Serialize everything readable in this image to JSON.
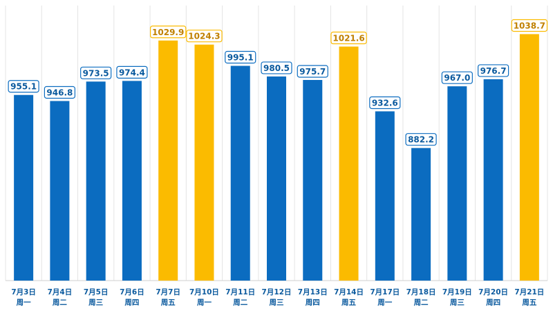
{
  "chart_data": {
    "type": "bar",
    "categories": [
      {
        "date": "7月3日",
        "weekday": "周一"
      },
      {
        "date": "7月4日",
        "weekday": "周二"
      },
      {
        "date": "7月5日",
        "weekday": "周三"
      },
      {
        "date": "7月6日",
        "weekday": "周四"
      },
      {
        "date": "7月7日",
        "weekday": "周五"
      },
      {
        "date": "7月10日",
        "weekday": "周一"
      },
      {
        "date": "7月11日",
        "weekday": "周二"
      },
      {
        "date": "7月12日",
        "weekday": "周三"
      },
      {
        "date": "7月13日",
        "weekday": "周四"
      },
      {
        "date": "7月14日",
        "weekday": "周五"
      },
      {
        "date": "7月17日",
        "weekday": "周一"
      },
      {
        "date": "7月18日",
        "weekday": "周二"
      },
      {
        "date": "7月19日",
        "weekday": "周三"
      },
      {
        "date": "7月20日",
        "weekday": "周四"
      },
      {
        "date": "7月21日",
        "weekday": "周五"
      }
    ],
    "values": [
      955.1,
      946.8,
      973.5,
      974.4,
      1029.9,
      1024.3,
      995.1,
      980.5,
      975.7,
      1021.6,
      932.6,
      882.2,
      967.0,
      976.7,
      1038.7
    ],
    "value_labels": [
      "955.1",
      "946.8",
      "973.5",
      "974.4",
      "1029.9",
      "1024.3",
      "995.1",
      "980.5",
      "975.7",
      "1021.6",
      "932.6",
      "882.2",
      "967.0",
      "976.7",
      "1038.7"
    ],
    "highlighted": [
      false,
      false,
      false,
      false,
      true,
      true,
      false,
      false,
      false,
      true,
      false,
      false,
      false,
      false,
      true
    ],
    "title": "",
    "xlabel": "",
    "ylabel": "",
    "ylim": [
      700,
      1060
    ],
    "grid": "vertical-separators",
    "legend": "none",
    "colors": {
      "normal": "#0b6cc0",
      "highlight": "#fbbb00",
      "normal_label": "#0b5a9e",
      "highlight_label": "#c08000",
      "label_box_fill": "#ffffff",
      "separator": "#e4e4e4",
      "axis": "#cfcfcf",
      "tick_label": "#0b5a9e"
    }
  }
}
